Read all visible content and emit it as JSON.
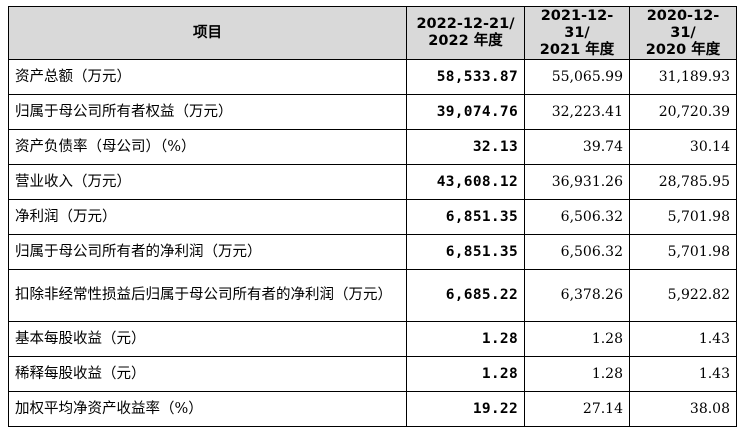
{
  "table": {
    "headers": {
      "item": "项目",
      "periods": [
        {
          "line1": "2022-12-21/",
          "line2": "2022 年度"
        },
        {
          "line1": "2021-12-31/",
          "line2": "2021 年度"
        },
        {
          "line1": "2020-12-31/",
          "line2": "2020 年度"
        }
      ]
    },
    "rows": [
      {
        "label": "资产总额（万元）",
        "v2022": "58,533.87",
        "v2021": "55,065.99",
        "v2020": "31,189.93"
      },
      {
        "label": "归属于母公司所有者权益（万元）",
        "v2022": "39,074.76",
        "v2021": "32,223.41",
        "v2020": "20,720.39"
      },
      {
        "label": "资产负债率（母公司）（%）",
        "v2022": "32.13",
        "v2021": "39.74",
        "v2020": "30.14"
      },
      {
        "label": "营业收入（万元）",
        "v2022": "43,608.12",
        "v2021": "36,931.26",
        "v2020": "28,785.95"
      },
      {
        "label": "净利润（万元）",
        "v2022": "6,851.35",
        "v2021": "6,506.32",
        "v2020": "5,701.98"
      },
      {
        "label": "归属于母公司所有者的净利润（万元）",
        "v2022": "6,851.35",
        "v2021": "6,506.32",
        "v2020": "5,701.98"
      },
      {
        "label": "扣除非经常性损益后归属于母公司所有者的净利润（万元）",
        "v2022": "6,685.22",
        "v2021": "6,378.26",
        "v2020": "5,922.82"
      },
      {
        "label": "基本每股收益（元）",
        "v2022": "1.28",
        "v2021": "1.28",
        "v2020": "1.43"
      },
      {
        "label": "稀释每股收益（元）",
        "v2022": "1.28",
        "v2021": "1.28",
        "v2020": "1.43"
      },
      {
        "label": "加权平均净资产收益率（%）",
        "v2022": "19.22",
        "v2021": "27.14",
        "v2020": "38.08"
      }
    ]
  }
}
